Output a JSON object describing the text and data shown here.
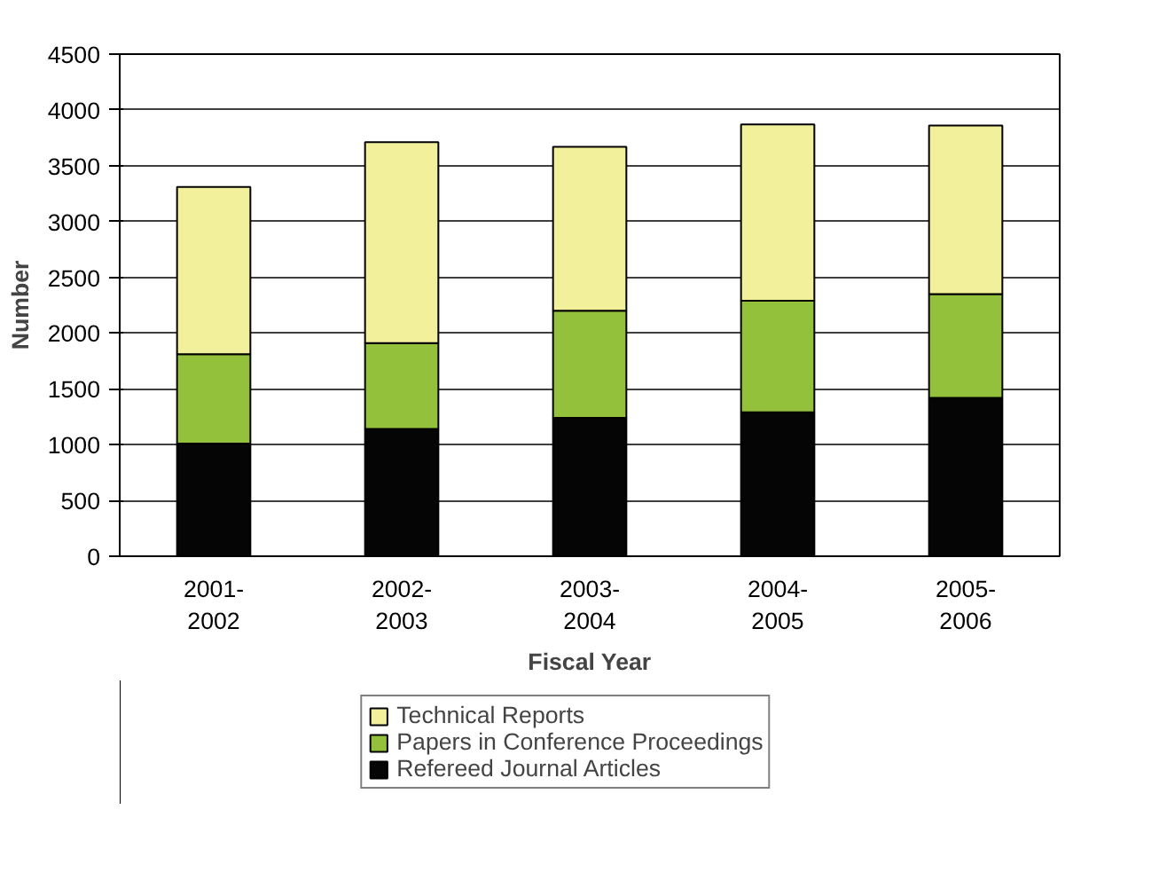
{
  "chart_data": {
    "type": "bar",
    "stacked": true,
    "xlabel": "Fiscal Year",
    "ylabel": "Number",
    "categories": [
      "2001-2002",
      "2002-2003",
      "2003-2004",
      "2004-2005",
      "2005-2006"
    ],
    "series": [
      {
        "name": "Refereed Journal Articles",
        "color": "#050505",
        "values": [
          1010,
          1140,
          1240,
          1290,
          1420
        ]
      },
      {
        "name": "Papers in Conference Proceedings",
        "color": "#93c13c",
        "values": [
          800,
          770,
          960,
          1000,
          930
        ]
      },
      {
        "name": "Technical Reports",
        "color": "#f3f09b",
        "values": [
          1500,
          1800,
          1470,
          1580,
          1510
        ]
      }
    ],
    "ylim": [
      0,
      4500
    ],
    "yticks": [
      0,
      500,
      1000,
      1500,
      2000,
      2500,
      3000,
      3500,
      4000,
      4500
    ],
    "grid": "y",
    "legend": "bottom"
  }
}
